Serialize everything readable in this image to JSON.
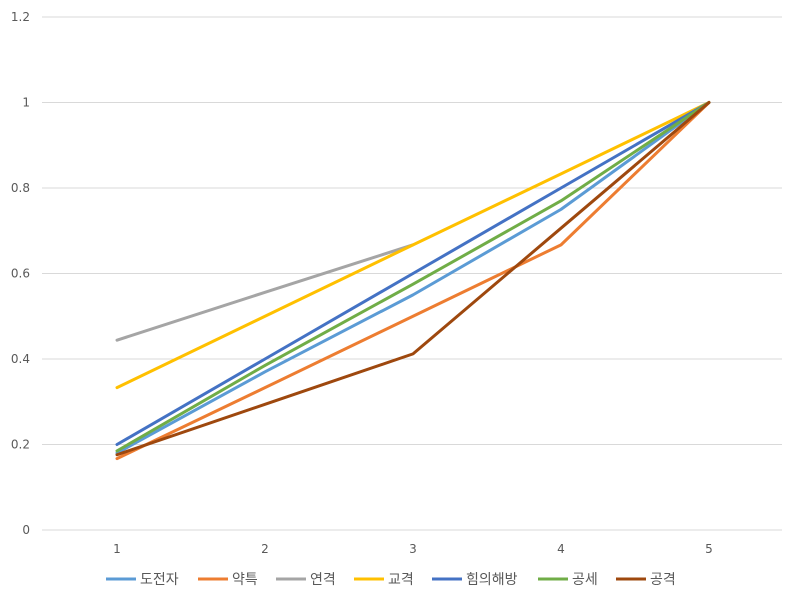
{
  "chart_data": {
    "type": "line",
    "title": "",
    "xlabel": "",
    "ylabel": "",
    "categories": [
      "1",
      "2",
      "3",
      "4",
      "5"
    ],
    "ylim": [
      0,
      1.2
    ],
    "yticks": [
      "0",
      "0.2",
      "0.4",
      "0.6",
      "0.8",
      "1",
      "1.2"
    ],
    "grid": true,
    "legend_position": "bottom",
    "series": [
      {
        "name": "도전자",
        "color": "#5B9BD5",
        "values": [
          0.18,
          0.37,
          0.55,
          0.75,
          1
        ]
      },
      {
        "name": "약특",
        "color": "#ED7D31",
        "values": [
          0.167,
          0.333,
          0.5,
          0.667,
          1
        ]
      },
      {
        "name": "연격",
        "color": "#A5A5A5",
        "values": [
          0.444,
          0.556,
          0.667,
          null,
          null
        ]
      },
      {
        "name": "교격",
        "color": "#FFC000",
        "values": [
          0.333,
          0.5,
          0.667,
          0.833,
          1
        ]
      },
      {
        "name": "힘의해방",
        "color": "#4472C4",
        "values": [
          0.2,
          0.4,
          0.6,
          0.8,
          1
        ]
      },
      {
        "name": "공세",
        "color": "#70AD47",
        "values": [
          0.185,
          0.385,
          0.575,
          0.77,
          1
        ]
      },
      {
        "name": "공격",
        "color": "#9E480E",
        "values": [
          0.176,
          0.294,
          0.412,
          0.706,
          1
        ]
      }
    ]
  }
}
